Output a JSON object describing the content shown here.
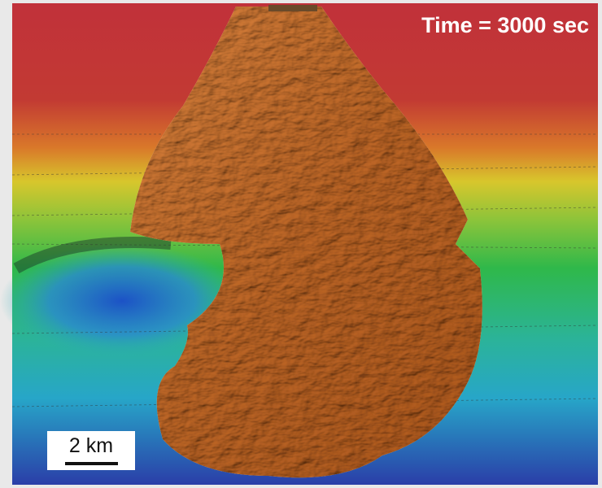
{
  "annotations": {
    "time_label": "Time = 3000 sec",
    "scale_label": "2 km"
  }
}
